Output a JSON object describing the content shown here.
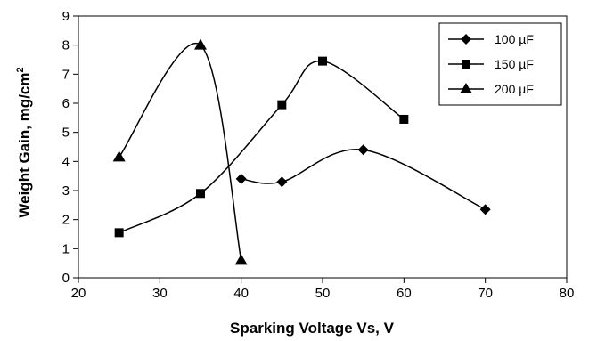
{
  "chart_data": {
    "type": "line",
    "title": "",
    "xlabel": "Sparking Voltage Vs, V",
    "ylabel_main": "Weight Gain, mg/cm",
    "ylabel_sup": "2",
    "xlim": [
      20,
      80
    ],
    "ylim": [
      0,
      9
    ],
    "xticks": [
      20,
      30,
      40,
      50,
      60,
      70,
      80
    ],
    "yticks": [
      0,
      1,
      2,
      3,
      4,
      5,
      6,
      7,
      8,
      9
    ],
    "grid": false,
    "smoothed": true,
    "legend_position": "top-right",
    "series": [
      {
        "name": "100 µF",
        "marker": "diamond",
        "x": [
          40,
          45,
          55,
          70
        ],
        "y": [
          3.4,
          3.3,
          4.4,
          2.35
        ]
      },
      {
        "name": "150 µF",
        "marker": "square",
        "x": [
          25,
          35,
          45,
          50,
          60
        ],
        "y": [
          1.55,
          2.9,
          5.95,
          7.45,
          5.45
        ]
      },
      {
        "name": "200 µF",
        "marker": "triangle",
        "x": [
          25,
          35,
          40
        ],
        "y": [
          4.15,
          8.0,
          0.6
        ]
      }
    ]
  }
}
